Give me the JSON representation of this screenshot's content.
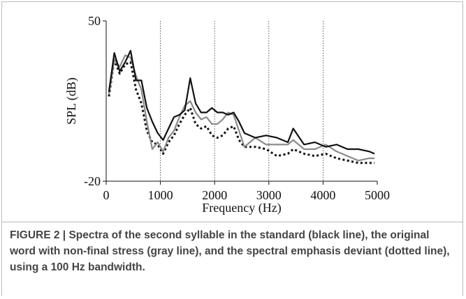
{
  "chart_data": {
    "type": "line",
    "xlabel": "Frequency (Hz)",
    "ylabel": "SPL (dB)",
    "x": [
      50,
      150,
      250,
      350,
      450,
      550,
      650,
      750,
      850,
      950,
      1050,
      1150,
      1250,
      1350,
      1450,
      1550,
      1650,
      1750,
      1850,
      1950,
      2050,
      2150,
      2250,
      2350,
      2450,
      2550,
      2750,
      2950,
      3150,
      3350,
      3450,
      3650,
      3850,
      4050,
      4250,
      4450,
      4650,
      4850,
      4950
    ],
    "series": [
      {
        "color": "#111111",
        "dash": "solid",
        "values": [
          19,
          36,
          28,
          32,
          37,
          24,
          24,
          12,
          6,
          1,
          -2,
          3,
          8,
          9,
          11,
          25,
          14,
          10,
          10,
          12,
          10,
          10,
          9,
          10,
          6,
          1,
          -1,
          0,
          -1,
          -3,
          3,
          -4,
          -3,
          -5,
          -4,
          -6,
          -6,
          -7,
          -8
        ]
      },
      {
        "color": "#8a8a8a",
        "dash": "solid",
        "values": [
          18,
          33,
          30,
          35,
          34,
          26,
          20,
          6,
          -6,
          -3,
          -7,
          -1,
          2,
          8,
          13,
          15,
          10,
          7,
          8,
          5,
          5,
          7,
          10,
          9,
          2,
          -5,
          -1,
          -4,
          -4,
          -4,
          -2,
          -6,
          -6,
          -4,
          -7,
          -9,
          -11,
          -10,
          -10
        ]
      },
      {
        "color": "#111111",
        "dash": "dotted",
        "values": [
          17,
          33,
          27,
          31,
          32,
          20,
          14,
          2,
          -3,
          -4,
          -8,
          -3,
          0,
          5,
          9,
          12,
          5,
          3,
          4,
          0,
          -1,
          0,
          3,
          4,
          -2,
          -5,
          -5,
          -6,
          -9,
          -8,
          -6,
          -8,
          -9,
          -8,
          -10,
          -11,
          -12,
          -12,
          -12
        ]
      }
    ],
    "xlim": [
      0,
      5000
    ],
    "xticks": [
      0,
      1000,
      2000,
      3000,
      4000,
      5000
    ],
    "ylim": [
      -20,
      50
    ],
    "yticks": [
      -20,
      50
    ],
    "grid": "x"
  },
  "caption": {
    "label": "FIGURE 2 |",
    "text": "Spectra of the second syllable in the standard (black line), the original word with non-final stress (gray line), and the spectral emphasis deviant (dotted line), using a 100 Hz bandwidth."
  }
}
